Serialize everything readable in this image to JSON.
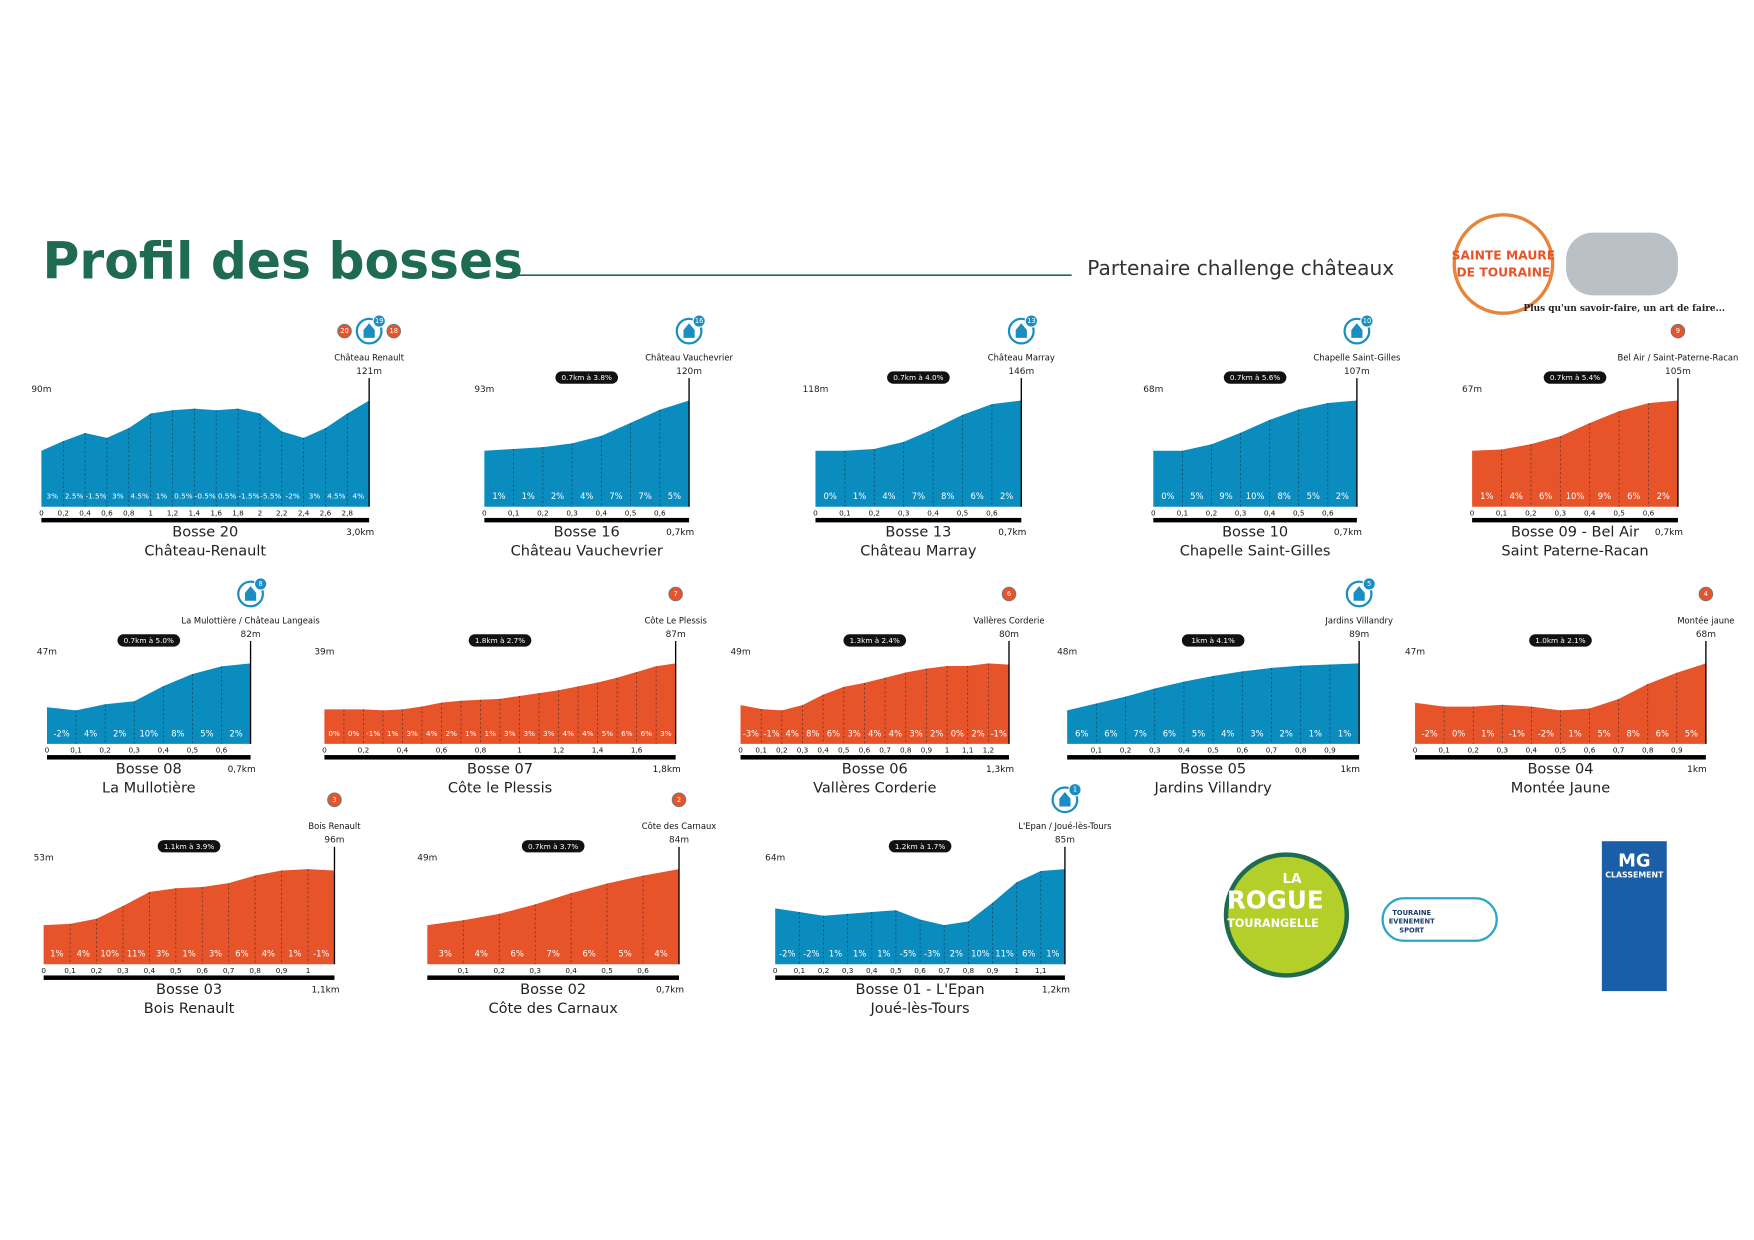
{
  "header": {
    "title": "Profil des bosses",
    "partner": "Partenaire challenge châteaux"
  },
  "panels": [
    {
      "name": "Bosse 20",
      "subtitle": "Château-Renault",
      "place": "Château Renault",
      "start_altitude": "90m",
      "end_altitude": "121m",
      "gradients": [
        "3%",
        "2.5%",
        "-1.5%",
        "3%",
        "4.5%",
        "1%",
        "0.5%",
        "-0.5%",
        "0.5%",
        "-1.5%",
        "-5.5%",
        "-2%",
        "3%",
        "4.5%",
        "4%"
      ],
      "distance_ticks": [
        "0",
        "0,2",
        "0,4",
        "0,6",
        "0,8",
        "1",
        "1,2",
        "1,4",
        "1,6",
        "1,8",
        "2",
        "2,2",
        "2,4",
        "2,6",
        "2,8"
      ],
      "total_distance": "3,0km",
      "badges": [
        {
          "number": "20",
          "color": "#e8542a"
        },
        {
          "number": "19",
          "color": "#1a8ec2"
        },
        {
          "number": "18",
          "color": "#e8542a"
        }
      ],
      "color": "#0b8cbf"
    },
    {
      "name": "Bosse 16",
      "subtitle": "Château Vauchevrier",
      "place": "Château Vauchevrier",
      "start_altitude": "93m",
      "end_altitude": "120m",
      "summary": "0.7km à 3.8%",
      "gradients": [
        "1%",
        "1%",
        "2%",
        "4%",
        "7%",
        "7%",
        "5%"
      ],
      "distance_ticks": [
        "0",
        "0,1",
        "0,2",
        "0,3",
        "0,4",
        "0,5",
        "0,6"
      ],
      "total_distance": "0,7km",
      "badges": [
        {
          "number": "16",
          "color": "#1a8ec2"
        }
      ],
      "color": "#0b8cbf"
    },
    {
      "name": "Bosse 13",
      "subtitle": "Château Marray",
      "place": "Château Marray",
      "start_altitude": "118m",
      "end_altitude": "146m",
      "summary": "0.7km à 4.0%",
      "gradients": [
        "0%",
        "1%",
        "4%",
        "7%",
        "8%",
        "6%",
        "2%"
      ],
      "distance_ticks": [
        "0",
        "0,1",
        "0,2",
        "0,3",
        "0,4",
        "0,5",
        "0,6"
      ],
      "total_distance": "0,7km",
      "badges": [
        {
          "number": "13",
          "color": "#1a8ec2"
        }
      ],
      "color": "#0b8cbf"
    },
    {
      "name": "Bosse 10",
      "subtitle": "Chapelle Saint-Gilles",
      "place": "Chapelle Saint-Gilles",
      "start_altitude": "68m",
      "end_altitude": "107m",
      "summary": "0.7km à 5.6%",
      "gradients": [
        "0%",
        "5%",
        "9%",
        "10%",
        "8%",
        "5%",
        "2%"
      ],
      "distance_ticks": [
        "0",
        "0,1",
        "0,2",
        "0,3",
        "0,4",
        "0,5",
        "0,6"
      ],
      "total_distance": "0,7km",
      "badges": [
        {
          "number": "10",
          "color": "#1a8ec2"
        }
      ],
      "color": "#0b8cbf"
    },
    {
      "name": "Bosse 09 - Bel Air",
      "subtitle": "Saint Paterne-Racan",
      "place": "Bel Air / Saint-Paterne-Racan",
      "start_altitude": "67m",
      "end_altitude": "105m",
      "summary": "0.7km à 5.4%",
      "gradients": [
        "1%",
        "4%",
        "6%",
        "10%",
        "9%",
        "6%",
        "2%"
      ],
      "distance_ticks": [
        "0",
        "0,1",
        "0,2",
        "0,3",
        "0,4",
        "0,5",
        "0,6"
      ],
      "total_distance": "0,7km",
      "badges": [
        {
          "number": "9",
          "color": "#e8542a"
        }
      ],
      "color": "#e8542a"
    },
    {
      "name": "Bosse 08",
      "subtitle": "La Mullotière",
      "place": "La Mulottière / Château Langeais",
      "start_altitude": "47m",
      "end_altitude": "82m",
      "summary": "0.7km à 5.0%",
      "gradients": [
        "-2%",
        "4%",
        "2%",
        "10%",
        "8%",
        "5%",
        "2%"
      ],
      "distance_ticks": [
        "0",
        "0,1",
        "0,2",
        "0,3",
        "0,4",
        "0,5",
        "0,6"
      ],
      "total_distance": "0,7km",
      "badges": [
        {
          "number": "8",
          "color": "#1a8ec2"
        }
      ],
      "color": "#0b8cbf"
    },
    {
      "name": "Bosse 07",
      "subtitle": "Côte le Plessis",
      "place": "Côte Le Plessis",
      "start_altitude": "39m",
      "end_altitude": "87m",
      "summary": "1.8km à 2.7%",
      "gradients": [
        "0%",
        "0%",
        "-1%",
        "1%",
        "3%",
        "4%",
        "2%",
        "1%",
        "1%",
        "3%",
        "3%",
        "3%",
        "4%",
        "4%",
        "5%",
        "6%",
        "6%",
        "3%"
      ],
      "distance_ticks": [
        "0",
        "0,2",
        "0,4",
        "0,6",
        "0,8",
        "1",
        "1,2",
        "1,4",
        "1,6"
      ],
      "total_distance": "1,8km",
      "badges": [
        {
          "number": "7",
          "color": "#e8542a"
        }
      ],
      "color": "#e8542a"
    },
    {
      "name": "Bosse 06",
      "subtitle": "Vallères Corderie",
      "place": "Vallères Corderie",
      "start_altitude": "49m",
      "end_altitude": "80m",
      "summary": "1.3km à 2.4%",
      "gradients": [
        "-3%",
        "-1%",
        "4%",
        "8%",
        "6%",
        "3%",
        "4%",
        "4%",
        "3%",
        "2%",
        "0%",
        "2%",
        "-1%"
      ],
      "distance_ticks": [
        "0",
        "0,1",
        "0,2",
        "0,3",
        "0,4",
        "0,5",
        "0,6",
        "0,7",
        "0,8",
        "0,9",
        "1",
        "1,1",
        "1,2"
      ],
      "total_distance": "1,3km",
      "badges": [
        {
          "number": "6",
          "color": "#e8542a"
        }
      ],
      "color": "#e8542a"
    },
    {
      "name": "Bosse 05",
      "subtitle": "Jardins Villandry",
      "place": "Jardins Villandry",
      "start_altitude": "48m",
      "end_altitude": "89m",
      "summary": "1km à 4.1%",
      "gradients": [
        "6%",
        "6%",
        "7%",
        "6%",
        "5%",
        "4%",
        "3%",
        "2%",
        "1%",
        "1%"
      ],
      "distance_ticks": [
        null,
        "0,1",
        "0,2",
        "0,3",
        "0,4",
        "0,5",
        "0,6",
        "0,7",
        "0,8",
        "0,9"
      ],
      "total_distance": "1km",
      "badges": [
        {
          "number": "5",
          "color": "#1a8ec2"
        }
      ],
      "color": "#0b8cbf"
    },
    {
      "name": "Bosse 04",
      "subtitle": "Montée Jaune",
      "place": "Montée jaune",
      "start_altitude": "47m",
      "end_altitude": "68m",
      "summary": "1.0km à 2.1%",
      "gradients": [
        "-2%",
        "0%",
        "1%",
        "-1%",
        "-2%",
        "1%",
        "5%",
        "8%",
        "6%",
        "5%"
      ],
      "distance_ticks": [
        "0",
        "0,1",
        "0,2",
        "0,3",
        "0,4",
        "0,5",
        "0,6",
        "0,7",
        "0,8",
        "0,9"
      ],
      "total_distance": "1km",
      "badges": [
        {
          "number": "4",
          "color": "#e8542a"
        }
      ],
      "color": "#e8542a"
    },
    {
      "name": "Bosse 03",
      "subtitle": "Bois Renault",
      "place": "Bois Renault",
      "start_altitude": "53m",
      "end_altitude": "96m",
      "summary": "1.1km à 3.9%",
      "gradients": [
        "1%",
        "4%",
        "10%",
        "11%",
        "3%",
        "1%",
        "3%",
        "6%",
        "4%",
        "1%",
        "-1%"
      ],
      "distance_ticks": [
        "0",
        "0,1",
        "0,2",
        "0,3",
        "0,4",
        "0,5",
        "0,6",
        "0,7",
        "0,8",
        "0,9",
        "1"
      ],
      "total_distance": "1,1km",
      "badges": [
        {
          "number": "3",
          "color": "#e8542a"
        }
      ],
      "color": "#e8542a"
    },
    {
      "name": "Bosse 02",
      "subtitle": "Côte des Carnaux",
      "place": "Côte des Carnaux",
      "start_altitude": "49m",
      "end_altitude": "84m",
      "summary": "0.7km à 3.7%",
      "gradients": [
        "3%",
        "4%",
        "6%",
        "7%",
        "6%",
        "5%",
        "4%"
      ],
      "distance_ticks": [
        null,
        "0,1",
        "0,2",
        "0,3",
        "0,4",
        "0,5",
        "0,6"
      ],
      "total_distance": "0,7km",
      "badges": [
        {
          "number": "2",
          "color": "#e8542a"
        }
      ],
      "color": "#e8542a"
    },
    {
      "name": "Bosse 01 - L'Epan",
      "subtitle": "Joué-lès-Tours",
      "place": "L'Epan / Joué-lès-Tours",
      "start_altitude": "64m",
      "end_altitude": "85m",
      "summary": "1.2km à 1.7%",
      "gradients": [
        "-2%",
        "-2%",
        "1%",
        "1%",
        "1%",
        "-5%",
        "-3%",
        "2%",
        "10%",
        "11%",
        "6%",
        "1%"
      ],
      "distance_ticks": [
        "0",
        "0,1",
        "0,2",
        "0,3",
        "0,4",
        "0,5",
        "0,6",
        "0,7",
        "0,8",
        "0,9",
        "1",
        "1,1"
      ],
      "total_distance": "1,2km",
      "badges": [
        {
          "number": "1",
          "color": "#1a8ec2"
        }
      ],
      "color": "#0b8cbf"
    }
  ],
  "logos": {
    "sainte_maure": [
      "SAINTE MAURE",
      "DE TOURAINE"
    ],
    "tagline": "Plus qu'un savoir-faire, un art de faire...",
    "rogue": [
      "LA",
      "ROGUE",
      "TOURANGELLE"
    ],
    "tes": [
      "TOURAINE",
      "EVENEMENT",
      "SPORT"
    ],
    "mg": [
      "MG",
      "CLASSEMENT"
    ]
  }
}
